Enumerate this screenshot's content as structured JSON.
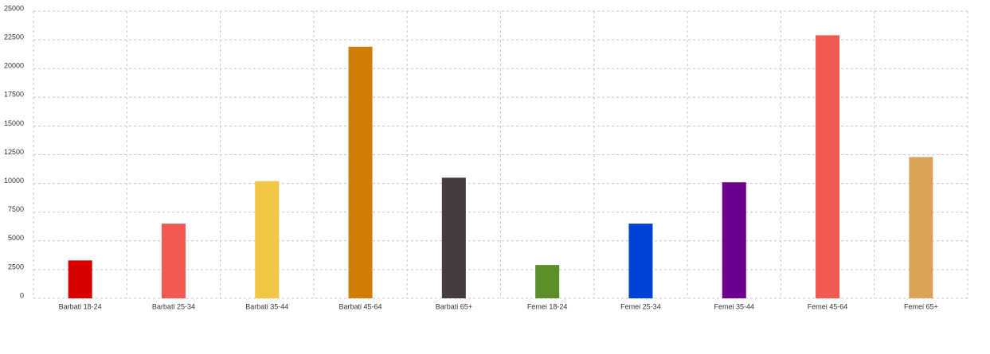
{
  "chart_data": {
    "type": "bar",
    "categories": [
      "Barbati 18-24",
      "Barbati 25-34",
      "Barbati 35-44",
      "Barbati 45-64",
      "Barbati 65+",
      "Femei 18-24",
      "Femei 25-34",
      "Femei 35-44",
      "Femei 45-64",
      "Femei 65+"
    ],
    "values": [
      3300,
      6500,
      10200,
      21900,
      10500,
      2900,
      6500,
      10100,
      22900,
      12300
    ],
    "colors": [
      "#d90000",
      "#f05a50",
      "#f2c744",
      "#d07c05",
      "#453c3e",
      "#5a8f2a",
      "#0043d4",
      "#6d008f",
      "#f05a50",
      "#dca257"
    ],
    "ylim": [
      0,
      25000
    ],
    "yticks": [
      0,
      2500,
      5000,
      7500,
      10000,
      12500,
      15000,
      17500,
      20000,
      22500,
      25000
    ],
    "grid": true
  }
}
